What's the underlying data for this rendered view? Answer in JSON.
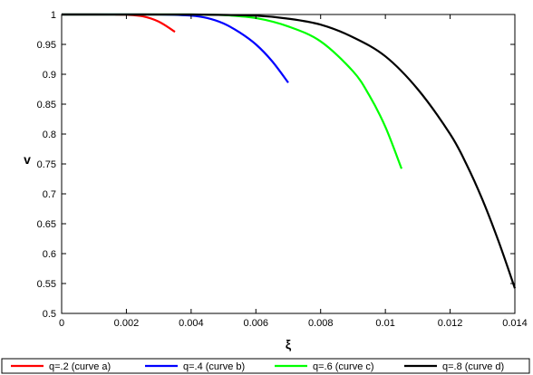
{
  "chart_data": {
    "type": "line",
    "title": "",
    "xlabel": "ξ",
    "ylabel": "v",
    "xlim": [
      0,
      0.014
    ],
    "ylim": [
      0.5,
      1
    ],
    "xticks": [
      0,
      0.002,
      0.004,
      0.006,
      0.008,
      0.01,
      0.012,
      0.014
    ],
    "xtick_labels": [
      "0",
      "0.002",
      "0.004",
      "0.006",
      "0.008",
      "0.01",
      "0.012",
      "0.014"
    ],
    "yticks": [
      0.5,
      0.55,
      0.6,
      0.65,
      0.7,
      0.75,
      0.8,
      0.85,
      0.9,
      0.95,
      1
    ],
    "ytick_labels": [
      "0.5",
      "0.55",
      "0.6",
      "0.65",
      "0.7",
      "0.75",
      "0.8",
      "0.85",
      "0.9",
      "0.95",
      "1"
    ],
    "grid": false,
    "legend_position": "bottom",
    "series": [
      {
        "name": "q=.2 (curve a)",
        "color": "#ff0000",
        "x": [
          0,
          0.0005,
          0.001,
          0.0015,
          0.002,
          0.0025,
          0.003,
          0.0035
        ],
        "y": [
          1,
          1,
          1,
          0.9999,
          0.9995,
          0.997,
          0.988,
          0.971
        ]
      },
      {
        "name": "q=.4 (curve b)",
        "color": "#0000ff",
        "x": [
          0,
          0.001,
          0.002,
          0.003,
          0.004,
          0.0045,
          0.005,
          0.0055,
          0.006,
          0.0065,
          0.007
        ],
        "y": [
          1,
          1,
          1,
          0.9999,
          0.998,
          0.994,
          0.985,
          0.97,
          0.95,
          0.922,
          0.886
        ]
      },
      {
        "name": "q=.6 (curve c)",
        "color": "#00ff00",
        "x": [
          0,
          0.002,
          0.004,
          0.005,
          0.006,
          0.007,
          0.008,
          0.009,
          0.0095,
          0.01,
          0.0105
        ],
        "y": [
          1,
          1,
          1,
          0.999,
          0.994,
          0.98,
          0.955,
          0.905,
          0.865,
          0.812,
          0.742
        ]
      },
      {
        "name": "q=.8 (curve d)",
        "color": "#000000",
        "x": [
          0,
          0.002,
          0.004,
          0.006,
          0.007,
          0.008,
          0.009,
          0.01,
          0.011,
          0.012,
          0.0125,
          0.013,
          0.0135,
          0.014
        ],
        "y": [
          1,
          1,
          1,
          0.998,
          0.993,
          0.983,
          0.962,
          0.93,
          0.875,
          0.8,
          0.75,
          0.69,
          0.62,
          0.542
        ]
      }
    ]
  }
}
